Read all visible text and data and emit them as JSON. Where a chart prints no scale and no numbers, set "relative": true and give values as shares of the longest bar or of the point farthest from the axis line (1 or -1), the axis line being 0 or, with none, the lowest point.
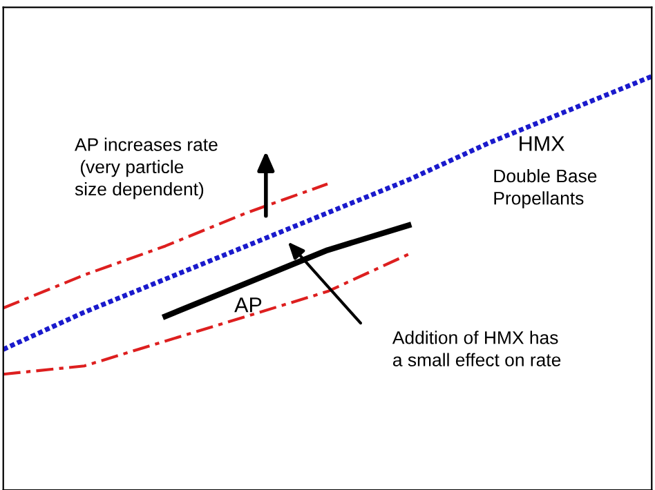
{
  "chart_data": {
    "type": "line",
    "relative": true,
    "categories": [
      null,
      null,
      null,
      null,
      null,
      null,
      null,
      null,
      null
    ],
    "series": [
      {
        "name": "HMX",
        "color": "#1a1acc",
        "line_style": "dotted",
        "values": [
          0.34,
          0.43,
          0.51,
          0.59,
          0.67,
          0.75,
          0.84,
          0.92,
          1.0
        ]
      },
      {
        "color": "#dd1f1f",
        "line_style": "dashed",
        "values": [
          0.44,
          0.52,
          0.59,
          0.67,
          0.74,
          null,
          null,
          null,
          null
        ]
      },
      {
        "color": "#dd1f1f",
        "line_style": "dashed",
        "values": [
          0.28,
          0.3,
          0.36,
          0.42,
          0.48,
          0.57,
          null,
          null,
          null
        ]
      },
      {
        "name": "AP",
        "color": "#000000",
        "line_style": "solid",
        "values": [
          null,
          null,
          0.42,
          0.5,
          0.58,
          0.64,
          null,
          null,
          null
        ]
      }
    ],
    "annotations": [
      "AP increases rate\n (very particle\nsize dependent)",
      "Double Base\nPropellants",
      "Addition of HMX has\na small effect on rate"
    ],
    "marker": "none",
    "legend": false
  }
}
